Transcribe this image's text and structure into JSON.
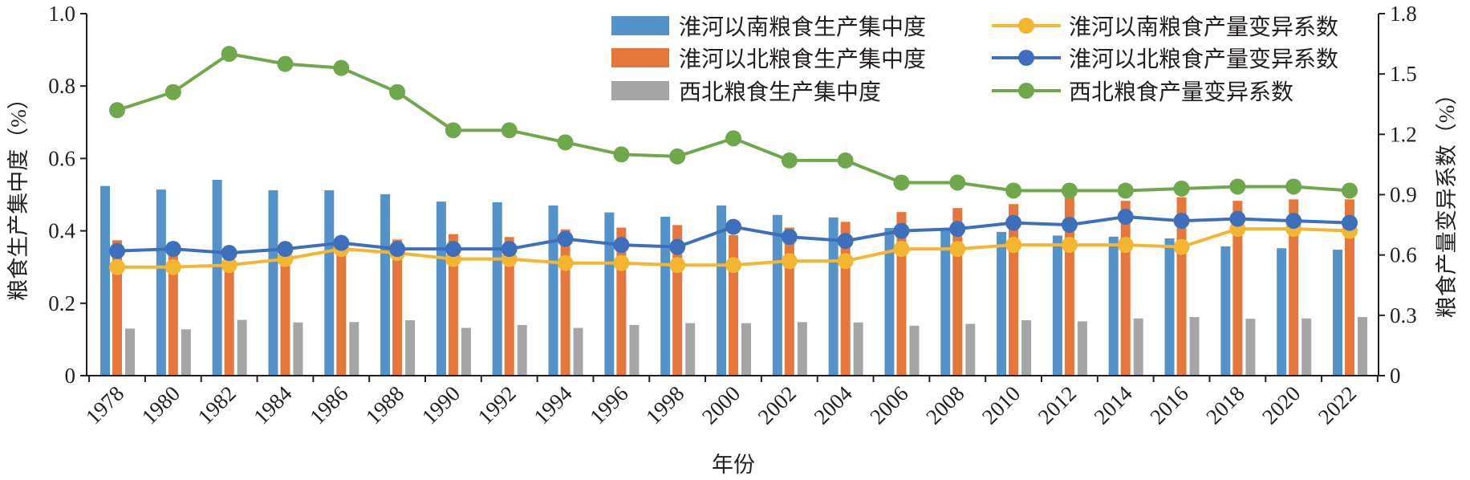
{
  "chart_data": {
    "type": "bar+line",
    "title": "",
    "xlabel": "年份",
    "ylabel_left": "粮食生产集中度（%）",
    "ylabel_right": "粮食产量变异系数（%）",
    "ylim_left": [
      0,
      1.0
    ],
    "ylim_right": [
      0,
      1.8
    ],
    "yticks_left": [
      "0",
      "0.2",
      "0.4",
      "0.6",
      "0.8",
      "1.0"
    ],
    "yticks_right": [
      "0",
      "0.3",
      "0.6",
      "0.9",
      "1.2",
      "1.5",
      "1.8"
    ],
    "grid": false,
    "legend_placement": "top-right",
    "categories": [
      "1978",
      "1980",
      "1982",
      "1984",
      "1986",
      "1988",
      "1990",
      "1992",
      "1994",
      "1996",
      "1998",
      "2000",
      "2002",
      "2004",
      "2006",
      "2008",
      "2010",
      "2012",
      "2014",
      "2016",
      "2018",
      "2020",
      "2022"
    ],
    "bar_series": [
      {
        "name": "淮河以南粮食生产集中度",
        "axis": "left",
        "color": "#5393c9",
        "values": [
          0.524,
          0.514,
          0.541,
          0.512,
          0.512,
          0.501,
          0.481,
          0.479,
          0.47,
          0.451,
          0.439,
          0.47,
          0.444,
          0.437,
          0.408,
          0.405,
          0.397,
          0.387,
          0.384,
          0.379,
          0.357,
          0.352,
          0.348
        ]
      },
      {
        "name": "淮河以北粮食生产集中度",
        "axis": "left",
        "color": "#e5773d",
        "values": [
          0.374,
          0.36,
          0.31,
          0.33,
          0.35,
          0.376,
          0.391,
          0.383,
          0.404,
          0.409,
          0.416,
          0.388,
          0.409,
          0.425,
          0.452,
          0.463,
          0.474,
          0.5,
          0.483,
          0.493,
          0.483,
          0.487,
          0.487
        ]
      },
      {
        "name": "西北粮食生产集中度",
        "axis": "left",
        "color": "#a5a5a8",
        "values": [
          0.13,
          0.128,
          0.154,
          0.147,
          0.148,
          0.153,
          0.132,
          0.14,
          0.132,
          0.14,
          0.145,
          0.145,
          0.148,
          0.147,
          0.138,
          0.143,
          0.153,
          0.15,
          0.158,
          0.162,
          0.157,
          0.158,
          0.162
        ]
      }
    ],
    "line_series": [
      {
        "name": "淮河以南粮食产量变异系数",
        "axis": "right",
        "color": "#f4b531",
        "values": [
          0.54,
          0.54,
          0.55,
          0.58,
          0.63,
          0.61,
          0.58,
          0.58,
          0.56,
          0.56,
          0.55,
          0.55,
          0.57,
          0.57,
          0.63,
          0.63,
          0.65,
          0.65,
          0.65,
          0.64,
          0.73,
          0.73,
          0.72
        ]
      },
      {
        "name": "淮河以北粮食产量变异系数",
        "axis": "right",
        "color": "#3e6fbd",
        "values": [
          0.62,
          0.63,
          0.61,
          0.63,
          0.66,
          0.63,
          0.63,
          0.63,
          0.68,
          0.65,
          0.64,
          0.74,
          0.69,
          0.67,
          0.72,
          0.73,
          0.76,
          0.75,
          0.79,
          0.77,
          0.78,
          0.77,
          0.76
        ]
      },
      {
        "name": "西北粮食产量变异系数",
        "axis": "right",
        "color": "#6fa84a",
        "values": [
          1.32,
          1.41,
          1.6,
          1.55,
          1.53,
          1.41,
          1.22,
          1.22,
          1.16,
          1.1,
          1.09,
          1.18,
          1.07,
          1.07,
          0.96,
          0.96,
          0.92,
          0.92,
          0.92,
          0.93,
          0.94,
          0.94,
          0.92
        ]
      }
    ]
  }
}
